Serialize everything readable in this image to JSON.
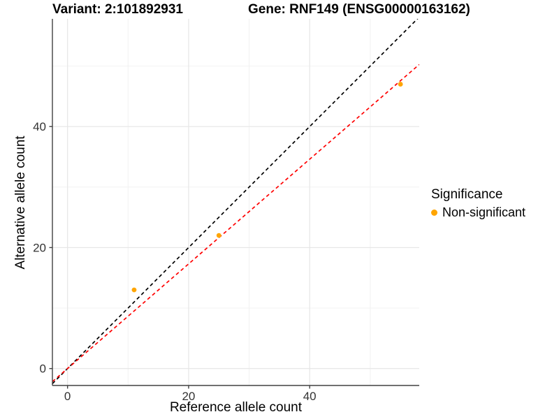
{
  "titles": {
    "variant": "Variant: 2:101892931",
    "gene": "Gene: RNF149 (ENSG00000163162)"
  },
  "chart_data": {
    "type": "scatter",
    "title_left": "Variant: 2:101892931",
    "title_right": "Gene: RNF149 (ENSG00000163162)",
    "xlabel": "Reference allele count",
    "ylabel": "Alternative allele count",
    "xlim": [
      -2.5,
      58.1
    ],
    "ylim": [
      -2.8,
      57.8
    ],
    "xticks": [
      0,
      20,
      40
    ],
    "yticks": [
      0,
      20,
      40
    ],
    "minor_xticks": [
      10,
      30,
      50
    ],
    "minor_yticks": [
      10,
      30,
      50
    ],
    "grid": true,
    "legend_position": "right",
    "series": [
      {
        "name": "Non-significant",
        "color": "#FFA500",
        "points": [
          [
            11,
            13
          ],
          [
            25,
            22
          ],
          [
            55,
            47
          ]
        ]
      }
    ],
    "lines": [
      {
        "name": "identity-line",
        "slope": 1,
        "intercept": 0,
        "color": "#000000",
        "style": "dashed"
      },
      {
        "name": "fit-line",
        "slope": 0.865,
        "intercept": 0,
        "color": "#FF0000",
        "style": "dashed"
      }
    ]
  },
  "legend": {
    "title": "Significance",
    "items": [
      {
        "label": "Non-significant",
        "color": "#FFA500"
      }
    ]
  },
  "colors": {
    "point_orange": "#FFA500",
    "fit_red": "#FF0000",
    "identity_black": "#000000",
    "grid_major": "#E6E6E6",
    "grid_minor": "#F2F2F2",
    "axis_line": "#404040",
    "tick_text": "#333333"
  }
}
